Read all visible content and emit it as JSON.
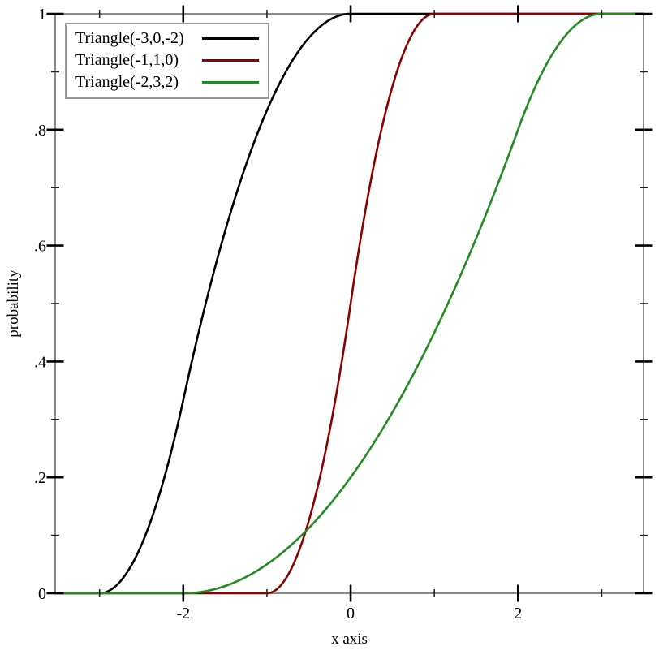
{
  "chart_data": {
    "type": "line",
    "subtype": "cdf-curves",
    "title": "",
    "xlabel": "x axis",
    "ylabel": "probability",
    "xlim": [
      -3.53,
      3.5
    ],
    "ylim": [
      0,
      1
    ],
    "grid": false,
    "legend_position": "top-left",
    "frame_color": "#8a8a8a",
    "tick_color": "#000000",
    "minor_tick_color": "#222222",
    "x_major_ticks": [
      {
        "value": -2,
        "label": "-2"
      },
      {
        "value": 0,
        "label": "0"
      },
      {
        "value": 2,
        "label": "2"
      }
    ],
    "x_minor_ticks": [
      -3,
      -1,
      1,
      3
    ],
    "y_major_ticks": [
      {
        "value": 0,
        "label": "0"
      },
      {
        "value": 0.2,
        "label": ".2"
      },
      {
        "value": 0.4,
        "label": ".4"
      },
      {
        "value": 0.6,
        "label": ".6"
      },
      {
        "value": 0.8,
        "label": ".8"
      },
      {
        "value": 1,
        "label": "1"
      }
    ],
    "y_minor_ticks": [
      0.1,
      0.3,
      0.5,
      0.7,
      0.9
    ],
    "cdf_formula": "F(x)=0 for x<=min; (x-min)^2/((max-min)(mode-min)) for min<x<=mode; 1-(max-x)^2/((max-min)(max-mode)) for mode<x<max; 1 for x>=max",
    "series": [
      {
        "name": "Triangle(-3,0,-2)",
        "color": "#000000",
        "distribution": "triangular",
        "min": -3,
        "max": 0,
        "mode": -2,
        "key_points": [
          [
            -3,
            0
          ],
          [
            -2,
            0.3333
          ],
          [
            0,
            1
          ]
        ]
      },
      {
        "name": "Triangle(-1,1,0)",
        "color": "#8b0000",
        "distribution": "triangular",
        "min": -1,
        "max": 1,
        "mode": 0,
        "key_points": [
          [
            -1,
            0
          ],
          [
            0,
            0.5
          ],
          [
            1,
            1
          ]
        ]
      },
      {
        "name": "Triangle(-2,3,2)",
        "color": "#228b22",
        "distribution": "triangular",
        "min": -2,
        "max": 3,
        "mode": 2,
        "key_points": [
          [
            -2,
            0
          ],
          [
            2,
            0.8
          ],
          [
            3,
            1
          ]
        ]
      }
    ]
  }
}
